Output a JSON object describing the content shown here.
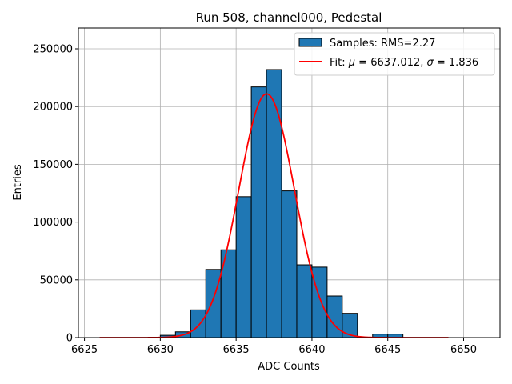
{
  "chart_data": {
    "type": "bar",
    "title": "Run 508, channel000, Pedestal",
    "xlabel": "ADC Counts",
    "ylabel": "Entries",
    "xlim": [
      6624.6,
      6652.4
    ],
    "ylim": [
      0,
      268000
    ],
    "xticks": [
      6625,
      6630,
      6635,
      6640,
      6645,
      6650
    ],
    "yticks": [
      0,
      50000,
      100000,
      150000,
      200000,
      250000
    ],
    "grid": true,
    "legend_position": "top-right",
    "histogram": {
      "name": "Samples: RMS=2.27",
      "color": "#1f77b4",
      "bin_width": 1,
      "bins": [
        {
          "x0": 6630,
          "value": 2000
        },
        {
          "x0": 6631,
          "value": 5000
        },
        {
          "x0": 6632,
          "value": 24000
        },
        {
          "x0": 6633,
          "value": 59000
        },
        {
          "x0": 6634,
          "value": 76000
        },
        {
          "x0": 6635,
          "value": 122000
        },
        {
          "x0": 6636,
          "value": 217000
        },
        {
          "x0": 6637,
          "value": 232000
        },
        {
          "x0": 6638,
          "value": 127000
        },
        {
          "x0": 6639,
          "value": 63000
        },
        {
          "x0": 6640,
          "value": 61000
        },
        {
          "x0": 6641,
          "value": 36000
        },
        {
          "x0": 6642,
          "value": 21000
        },
        {
          "x0": 6643,
          "value": 0
        },
        {
          "x0": 6644,
          "value": 3000
        },
        {
          "x0": 6645,
          "value": 3000
        }
      ]
    },
    "fit": {
      "name_prefix": "Fit: ",
      "mu_symbol": "μ",
      "mu_text": " = 6637.012, ",
      "sigma_symbol": "σ",
      "sigma_text": " = 1.836",
      "color": "#ff0000",
      "mu": 6637.012,
      "sigma": 1.836,
      "amplitude": 211000,
      "x_range": [
        6626,
        6649
      ]
    }
  }
}
